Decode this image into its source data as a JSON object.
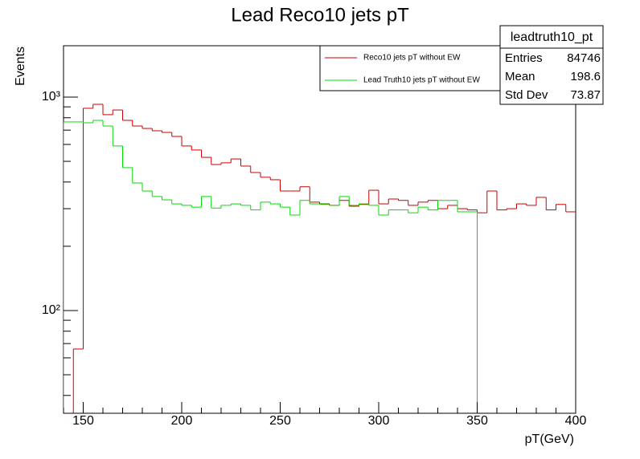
{
  "chart_data": {
    "type": "histogram",
    "title": "Lead Reco10 jets pT",
    "xlabel": "pT(GeV)",
    "ylabel": "Events",
    "log_y": true,
    "bins": [
      140,
      145,
      150,
      155,
      160,
      165,
      170,
      175,
      180,
      185,
      190,
      195,
      200,
      205,
      210,
      215,
      220,
      225,
      230,
      235,
      240,
      245,
      250,
      255,
      260,
      265,
      270,
      275,
      280,
      285,
      290,
      295,
      300,
      305,
      310,
      315,
      320,
      325,
      330,
      335,
      340,
      345,
      350,
      355,
      360,
      365,
      370,
      375,
      380,
      385,
      390,
      395,
      400
    ],
    "series": [
      {
        "name": "Reco10 jets pT without EW",
        "color": "#cc0000",
        "values": [
          0,
          66,
          886,
          925,
          827,
          870,
          778,
          732,
          713,
          695,
          683,
          654,
          590,
          565,
          522,
          483,
          492,
          513,
          475,
          443,
          421,
          410,
          363,
          363,
          380,
          322,
          316,
          311,
          328,
          308,
          314,
          366,
          316,
          333,
          328,
          311,
          322,
          328,
          300,
          311,
          300,
          296,
          287,
          363,
          296,
          300,
          316,
          311,
          339,
          296,
          314,
          290
        ]
      },
      {
        "name": "Lead Truth10 jets pT without EW",
        "color": "#00dd00",
        "values": [
          765,
          765,
          758,
          778,
          732,
          590,
          467,
          396,
          363,
          342,
          330,
          316,
          311,
          305,
          342,
          302,
          311,
          316,
          311,
          296,
          322,
          316,
          305,
          280,
          328,
          316,
          314,
          311,
          342,
          311,
          316,
          311,
          280,
          296,
          296,
          287,
          305,
          296,
          328,
          328,
          290,
          290,
          0,
          0,
          0,
          0,
          0,
          0,
          0,
          0,
          0,
          0
        ]
      }
    ],
    "xlim": [
      140,
      400
    ],
    "ylim": [
      33,
      1740
    ],
    "xticks": [
      150,
      200,
      250,
      300,
      350,
      400
    ],
    "xminorticks": [
      140,
      160,
      170,
      180,
      190,
      210,
      220,
      230,
      240,
      260,
      270,
      280,
      290,
      310,
      320,
      330,
      340,
      360,
      370,
      380,
      390
    ],
    "yticks": [
      {
        "value": 100,
        "label": "10²"
      },
      {
        "value": 1000,
        "label": "10³"
      }
    ],
    "yminorticks": [
      40,
      50,
      60,
      70,
      80,
      90,
      200,
      300,
      400,
      500,
      600,
      700,
      800,
      900
    ],
    "stats": {
      "title": "leadtruth10_pt",
      "rows": [
        [
          "Entries",
          84746
        ],
        [
          "Mean",
          198.6
        ],
        [
          "Std Dev",
          73.87
        ]
      ]
    }
  }
}
